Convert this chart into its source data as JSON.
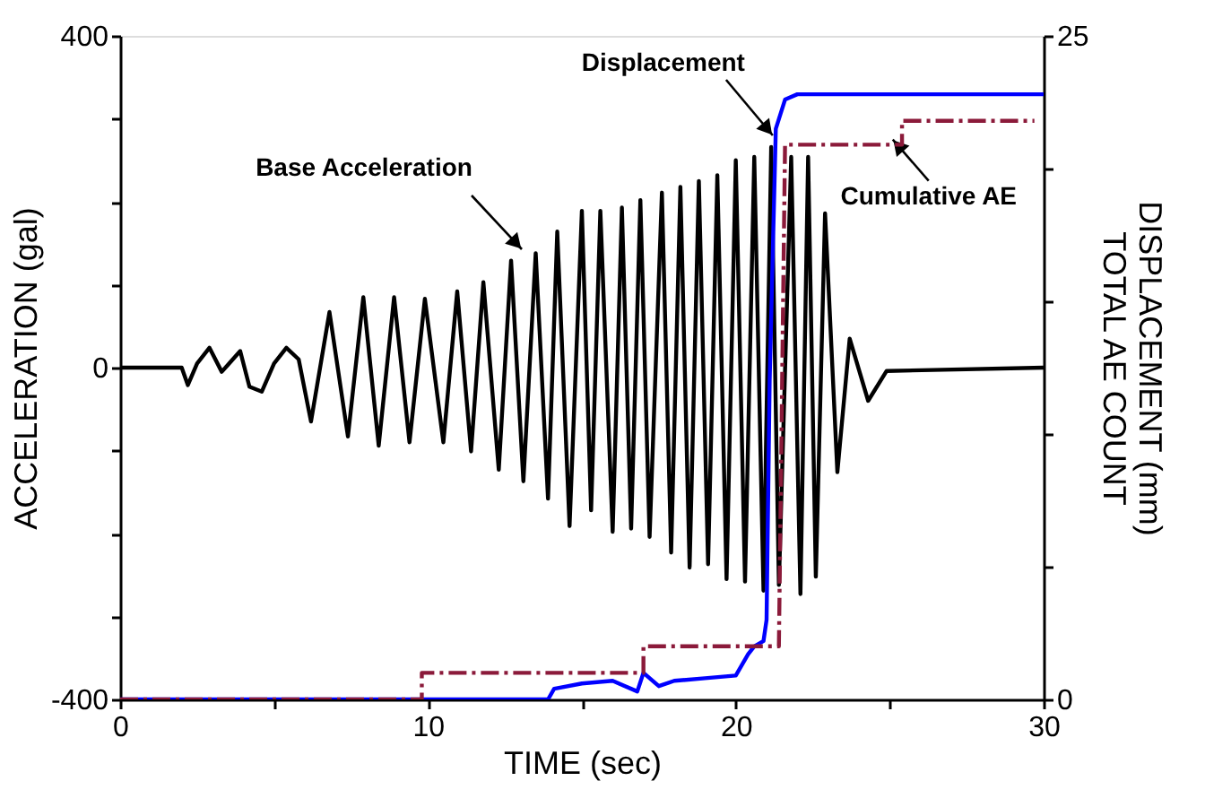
{
  "chart_data": {
    "type": "line",
    "xlabel": "TIME (sec)",
    "ylabel": "ACCELERATION (gal)",
    "y2label": "DISPLACEMENT (mm)\nTOTAL AE COUNT",
    "xlim": [
      0,
      30
    ],
    "xticks": [
      0,
      {
        "value": 5,
        "label": null
      },
      10,
      {
        "value": 15,
        "label": null
      },
      20,
      {
        "value": 25,
        "label": null
      },
      30
    ],
    "ylim": [
      -400,
      400
    ],
    "yticks": [
      -400,
      {
        "value": -300,
        "label": null
      },
      {
        "value": -200,
        "label": null
      },
      {
        "value": -100,
        "label": null
      },
      0,
      {
        "value": 100,
        "label": null
      },
      {
        "value": 200,
        "label": null
      },
      {
        "value": 300,
        "label": null
      },
      400
    ],
    "y2lim": [
      0,
      25
    ],
    "y2ticks": [
      0,
      {
        "value": 5,
        "label": null
      },
      {
        "value": 10,
        "label": null
      },
      {
        "value": 15,
        "label": null
      },
      {
        "value": 20,
        "label": null
      },
      25
    ],
    "grid": false,
    "series": [
      {
        "color": "#000000",
        "line_style": "solid",
        "x": [
          0,
          2.0,
          2.2,
          2.5,
          2.9,
          3.3,
          3.9,
          4.2,
          4.6,
          5.0,
          5.4,
          5.8,
          6.2,
          6.8,
          7.4,
          7.9,
          8.4,
          8.9,
          9.4,
          9.9,
          10.5,
          10.95,
          11.4,
          11.8,
          12.3,
          12.7,
          13.1,
          13.5,
          13.9,
          14.2,
          14.6,
          15.0,
          15.3,
          15.6,
          16.0,
          16.3,
          16.6,
          16.9,
          17.2,
          17.6,
          17.9,
          18.2,
          18.5,
          18.8,
          19.1,
          19.4,
          19.7,
          20.0,
          20.3,
          20.6,
          20.9,
          21.15,
          21.4,
          21.8,
          22.1,
          22.35,
          22.6,
          22.9,
          23.3,
          23.7,
          24.3,
          24.9,
          30
        ],
        "values": [
          0,
          0,
          -21,
          5,
          24,
          -5,
          20,
          -23,
          -29,
          5,
          24,
          10,
          -65,
          67,
          -83,
          85,
          -94,
          85,
          -90,
          83,
          -90,
          92,
          -101,
          103,
          -123,
          129,
          -137,
          138,
          -158,
          164,
          -191,
          189,
          -172,
          189,
          -198,
          193,
          -194,
          202,
          -204,
          211,
          -223,
          218,
          -241,
          225,
          -237,
          232,
          -255,
          250,
          -258,
          254,
          -269,
          266,
          -262,
          254,
          -273,
          254,
          -252,
          186,
          -126,
          35,
          -40,
          -4,
          0
        ]
      },
      {
        "color": "#0000ff",
        "line_style": "solid",
        "axis": "y2",
        "x": [
          0,
          13.9,
          14.1,
          15,
          16,
          16.8,
          17.0,
          17.5,
          18,
          19,
          20,
          20.4,
          20.6,
          20.9,
          21.0,
          21.1,
          21.3,
          21.6,
          22,
          30
        ],
        "values": [
          0,
          0,
          0.4,
          0.6,
          0.7,
          0.3,
          1.0,
          0.5,
          0.7,
          0.8,
          0.9,
          1.7,
          2.0,
          2.2,
          3,
          12,
          21.5,
          22.6,
          22.8,
          22.8
        ]
      },
      {
        "color": "#8b1a3a",
        "line_style": "dashed",
        "axis": "y2",
        "x": [
          0,
          9.8,
          9.8,
          17.0,
          17.0,
          21.4,
          21.6,
          25.4,
          25.4,
          29.7
        ],
        "values": [
          0,
          0,
          1.0,
          1.0,
          2.0,
          2.0,
          20.9,
          20.9,
          21.8,
          21.8
        ]
      }
    ],
    "annotations": [
      "Base Acceleration",
      {
        "text": "Displacement",
        "x": 21.2,
        "y": 280
      },
      {
        "text": "Cumulative AE",
        "x": 25.1,
        "y": 275
      }
    ]
  }
}
